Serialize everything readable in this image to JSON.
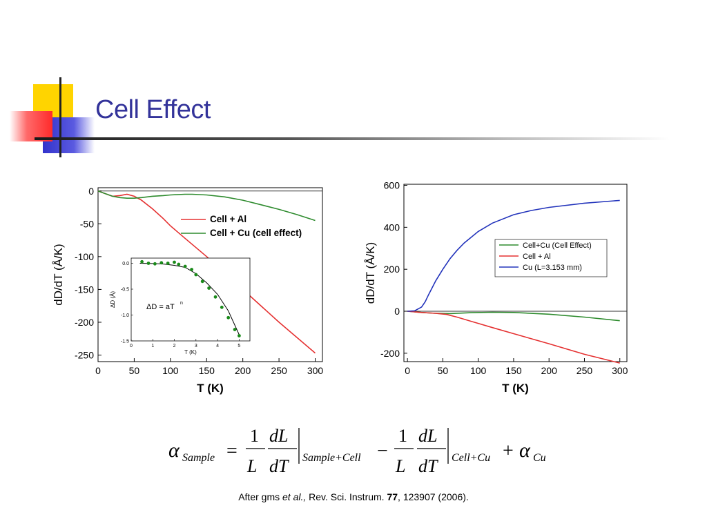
{
  "slide": {
    "title": "Cell Effect",
    "accent_colors": {
      "yellow": "#ffd400",
      "red": "#ff4444",
      "blue": "#3333cc",
      "title": "#33339a"
    }
  },
  "chart_data": [
    {
      "type": "line",
      "xlabel": "T (K)",
      "ylabel": "dD/dT (Å/K)",
      "xlim": [
        0,
        310
      ],
      "ylim": [
        -260,
        5
      ],
      "xticks": [
        0,
        50,
        100,
        150,
        200,
        250,
        300
      ],
      "yticks": [
        0,
        -50,
        -100,
        -150,
        -200,
        -250
      ],
      "zero_line": true,
      "legend_position": "upper-right",
      "series": [
        {
          "name": "Cell + Al",
          "color": "#e53030",
          "x": [
            0,
            10,
            20,
            30,
            40,
            50,
            60,
            75,
            90,
            100,
            120,
            150,
            200,
            250,
            300
          ],
          "y": [
            0,
            -4,
            -8,
            -7,
            -5,
            -8,
            -14,
            -27,
            -42,
            -53,
            -72,
            -100,
            -150,
            -200,
            -247
          ]
        },
        {
          "name": "Cell + Cu (cell effect)",
          "color": "#2e8b2e",
          "x": [
            0,
            10,
            20,
            30,
            40,
            50,
            60,
            75,
            90,
            100,
            120,
            130,
            150,
            175,
            200,
            225,
            250,
            275,
            300
          ],
          "y": [
            0,
            -4,
            -8,
            -10,
            -11,
            -11,
            -10,
            -8,
            -7,
            -6,
            -5,
            -5,
            -6,
            -9,
            -14,
            -21,
            -28,
            -36,
            -45
          ]
        }
      ],
      "inset": {
        "type": "scatter",
        "xlabel": "T (K)",
        "ylabel": "ΔD (Å)",
        "annotation": "ΔD = aT",
        "annotation_superscript": "n",
        "xlim": [
          0,
          5.5
        ],
        "ylim": [
          -1.5,
          0.1
        ],
        "xticks": [
          0,
          1,
          2,
          3,
          4,
          5
        ],
        "xtick_labels": [
          "0",
          "1",
          "2",
          "3",
          "4",
          "5"
        ],
        "yticks": [
          0.0,
          -0.5,
          -1.0,
          -1.5
        ],
        "ytick_labels": [
          "0.0",
          "-0.5",
          "-1.0",
          "-1.5"
        ],
        "data": {
          "name": "data",
          "color": "#1a8a1a",
          "x": [
            0.5,
            0.8,
            1.1,
            1.4,
            1.7,
            2.0,
            2.2,
            2.5,
            2.8,
            3.0,
            3.3,
            3.6,
            3.9,
            4.2,
            4.5,
            4.8,
            5.0
          ],
          "y": [
            0.03,
            0.0,
            -0.01,
            0.01,
            0.0,
            0.02,
            -0.02,
            -0.06,
            -0.12,
            -0.22,
            -0.35,
            -0.48,
            -0.65,
            -0.85,
            -1.05,
            -1.28,
            -1.4
          ]
        },
        "fit": {
          "name": "fit",
          "color": "#000000",
          "x": [
            0.4,
            1.0,
            1.5,
            2.0,
            2.5,
            3.0,
            3.5,
            4.0,
            4.5,
            5.0
          ],
          "y": [
            0.0,
            -0.005,
            -0.015,
            -0.04,
            -0.08,
            -0.2,
            -0.38,
            -0.6,
            -0.92,
            -1.38
          ]
        }
      }
    },
    {
      "type": "line",
      "xlabel": "T (K)",
      "ylabel": "dD/dT (Å/K)",
      "xlim": [
        -5,
        310
      ],
      "ylim": [
        -240,
        605
      ],
      "xticks": [
        0,
        50,
        100,
        150,
        200,
        250,
        300
      ],
      "yticks": [
        600,
        400,
        200,
        0,
        -200
      ],
      "zero_line": true,
      "legend_position": "center-right",
      "series": [
        {
          "name": "Cell+Cu (Cell Effect)",
          "color": "#2e8b2e",
          "x": [
            0,
            20,
            40,
            60,
            90,
            120,
            150,
            200,
            250,
            300
          ],
          "y": [
            0,
            -6,
            -10,
            -11,
            -7,
            -5,
            -6,
            -14,
            -28,
            -45
          ]
        },
        {
          "name": "Cell + Al",
          "color": "#e53030",
          "x": [
            0,
            20,
            40,
            55,
            70,
            90,
            100,
            120,
            150,
            200,
            250,
            300
          ],
          "y": [
            0,
            -6,
            -10,
            -15,
            -28,
            -48,
            -58,
            -78,
            -107,
            -155,
            -205,
            -247
          ]
        },
        {
          "name": "Cu (L=3.153 mm)",
          "color": "#2233bb",
          "x": [
            0,
            10,
            20,
            25,
            30,
            40,
            50,
            60,
            70,
            80,
            100,
            120,
            150,
            175,
            200,
            250,
            300
          ],
          "y": [
            0,
            2,
            20,
            45,
            80,
            145,
            200,
            250,
            290,
            325,
            380,
            420,
            460,
            480,
            495,
            515,
            528
          ]
        }
      ]
    }
  ],
  "formula": {
    "alpha": "α",
    "sub_sample": "Sample",
    "equals": "=",
    "one": "1",
    "L": "L",
    "dL": "dL",
    "dT": "dT",
    "sub_sample_cell": "Sample+Cell",
    "minus": "−",
    "sub_cell_cu": "Cell+Cu",
    "plus": "+",
    "sub_cu": "Cu"
  },
  "citation": {
    "prefix": "After gms ",
    "etal": "et al.,",
    "journal": " Rev. Sci. Instrum. ",
    "volume": "77",
    "rest": ", 123907 (2006)."
  }
}
